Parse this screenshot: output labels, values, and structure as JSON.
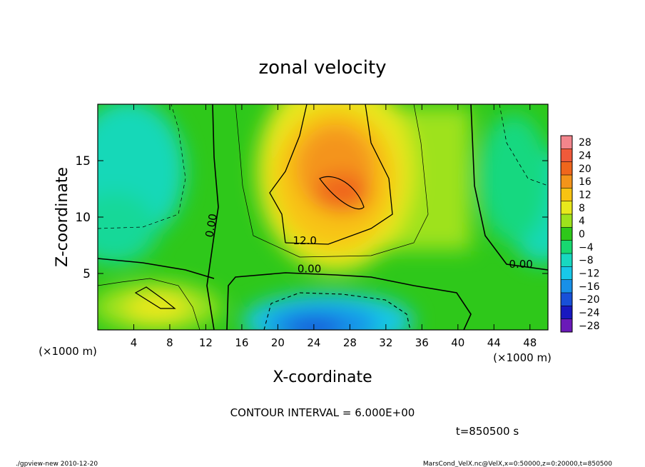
{
  "chart_data": {
    "type": "heatmap",
    "title": "zonal velocity",
    "xlabel": "X-coordinate",
    "ylabel": "Z-coordinate",
    "x_unit_note": "(×1000 m)",
    "x_unit_note_right": "(×1000 m)",
    "xlim": [
      0,
      50
    ],
    "ylim": [
      0,
      20
    ],
    "xticks": [
      4,
      8,
      12,
      16,
      20,
      24,
      28,
      32,
      36,
      40,
      44,
      48
    ],
    "yticks": [
      5,
      10,
      15
    ],
    "colorbar": {
      "levels": [
        28,
        24,
        20,
        16,
        12,
        8,
        4,
        0,
        -4,
        -8,
        -12,
        -16,
        -20,
        -24,
        -28
      ],
      "labels": [
        "28",
        "24",
        "20",
        "16",
        "12",
        "8",
        "4",
        "0",
        "−4",
        "−8",
        "−12",
        "−16",
        "−20",
        "−24",
        "−28"
      ],
      "colors": [
        "#f2858c",
        "#f05a3a",
        "#f0661c",
        "#f4941a",
        "#f8c312",
        "#e8e81c",
        "#9ee21c",
        "#2ec81a",
        "#18d870",
        "#18d8c0",
        "#18c8e8",
        "#1890e8",
        "#1850d8",
        "#1818c0",
        "#6a1ab8"
      ]
    },
    "field_features": [
      {
        "x": 27,
        "z": 12,
        "value": 20,
        "kind": "max"
      },
      {
        "x": 26,
        "z": 1,
        "value": -16,
        "kind": "min"
      },
      {
        "x": 5,
        "z": 2,
        "value": 10,
        "kind": "max"
      },
      {
        "x": 2,
        "z": 16,
        "value": -8,
        "kind": "min"
      },
      {
        "x": 49,
        "z": 11,
        "value": -8,
        "kind": "min"
      }
    ],
    "contour_labels": [
      {
        "text": "0.00",
        "x": 13,
        "z": 9.2
      },
      {
        "text": "12.0",
        "x": 23,
        "z": 7.6
      },
      {
        "text": "0.00",
        "x": 23.5,
        "z": 5.1
      },
      {
        "text": "0.00",
        "x": 47,
        "z": 5.5
      }
    ]
  },
  "footer": {
    "contour_interval": "CONTOUR INTERVAL = 6.000E+00",
    "time": "t=850500 s",
    "program": "./gpview-new  2010-12-20",
    "source": "MarsCond_VelX.nc@VelX,x=0:50000,z=0:20000,t=850500"
  }
}
